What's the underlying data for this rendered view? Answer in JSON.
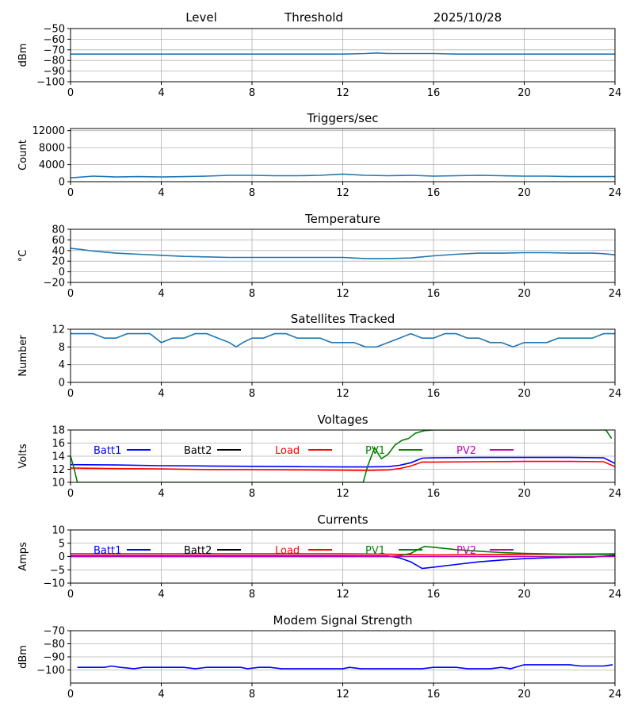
{
  "header": {
    "level": "Level",
    "threshold": "Threshold",
    "date": "2025/10/28"
  },
  "colors": {
    "series_default": "#1f77b4",
    "Batt1": "#0000ff",
    "Batt2": "#000000",
    "Load": "#ff0000",
    "PV1": "#008000",
    "PV2": "#bf00bf",
    "grid": "#b0b0b0"
  },
  "chart_data": [
    {
      "type": "line",
      "title": "",
      "ylabel": "dBm",
      "xlim": [
        0,
        24
      ],
      "ylim": [
        -100,
        -50
      ],
      "xticks": [
        0,
        4,
        8,
        12,
        16,
        20,
        24
      ],
      "yticks": [
        -100,
        -90,
        -80,
        -70,
        -60,
        -50
      ],
      "grid": true,
      "series": [
        {
          "color": "#1f77b4",
          "x": [
            0,
            1,
            2,
            3,
            4,
            5,
            6,
            7,
            8,
            9,
            10,
            11,
            12,
            13,
            13.5,
            14,
            15,
            16,
            17,
            18,
            19,
            20,
            21,
            22,
            23,
            24
          ],
          "y": [
            -74,
            -74,
            -74,
            -74,
            -74,
            -74,
            -74,
            -74,
            -74,
            -74,
            -74,
            -74,
            -74,
            -73.5,
            -73,
            -73.5,
            -73.5,
            -73.5,
            -74,
            -74,
            -74,
            -74,
            -74,
            -74,
            -74,
            -74
          ]
        }
      ]
    },
    {
      "type": "line",
      "title": "Triggers/sec",
      "ylabel": "Count",
      "xlim": [
        0,
        24
      ],
      "ylim": [
        0,
        12500
      ],
      "xticks": [
        0,
        4,
        8,
        12,
        16,
        20,
        24
      ],
      "yticks": [
        0,
        4000,
        8000,
        12000
      ],
      "grid": true,
      "series": [
        {
          "color": "#1f77b4",
          "x": [
            0,
            1,
            2,
            3,
            4,
            5,
            6,
            7,
            8,
            9,
            10,
            11,
            12,
            13,
            14,
            15,
            16,
            17,
            18,
            19,
            20,
            21,
            22,
            23,
            24
          ],
          "y": [
            900,
            1300,
            1100,
            1200,
            1100,
            1200,
            1300,
            1500,
            1500,
            1400,
            1400,
            1500,
            1800,
            1500,
            1400,
            1500,
            1300,
            1400,
            1500,
            1400,
            1300,
            1300,
            1200,
            1200,
            1200
          ]
        }
      ]
    },
    {
      "type": "line",
      "title": "Temperature",
      "ylabel": "°C",
      "xlim": [
        0,
        24
      ],
      "ylim": [
        -20,
        80
      ],
      "xticks": [
        0,
        4,
        8,
        12,
        16,
        20,
        24
      ],
      "yticks": [
        -20,
        0,
        20,
        40,
        60,
        80
      ],
      "grid": true,
      "series": [
        {
          "color": "#1f77b4",
          "x": [
            0,
            0.5,
            1,
            2,
            3,
            4,
            5,
            6,
            7,
            8,
            9,
            10,
            11,
            12,
            13,
            14,
            15,
            15.5,
            16,
            17,
            18,
            19,
            20,
            21,
            22,
            23,
            23.5,
            24
          ],
          "y": [
            44,
            42,
            39,
            35,
            33,
            31,
            29,
            28,
            27,
            27,
            27,
            27,
            27,
            27,
            25,
            25,
            26,
            28,
            30,
            33,
            35,
            35,
            36,
            36,
            35,
            35,
            34,
            32
          ]
        }
      ]
    },
    {
      "type": "line",
      "title": "Satellites Tracked",
      "ylabel": "Number",
      "xlim": [
        0,
        24
      ],
      "ylim": [
        0,
        12
      ],
      "xticks": [
        0,
        4,
        8,
        12,
        16,
        20,
        24
      ],
      "yticks": [
        0,
        4,
        8,
        12
      ],
      "grid": true,
      "series": [
        {
          "color": "#1f77b4",
          "x": [
            0,
            0.5,
            1,
            1.5,
            2,
            2.5,
            3,
            3.5,
            4,
            4.5,
            5,
            5.5,
            6,
            6.5,
            7,
            7.3,
            7.6,
            8,
            8.5,
            9,
            9.5,
            10,
            10.5,
            11,
            11.5,
            12,
            12.5,
            13,
            13.5,
            14,
            14.5,
            15,
            15.5,
            16,
            16.5,
            17,
            17.5,
            18,
            18.5,
            19,
            19.5,
            20,
            20.5,
            21,
            21.5,
            22,
            22.5,
            23,
            23.5,
            24
          ],
          "y": [
            11,
            11,
            11,
            10,
            10,
            11,
            11,
            11,
            9,
            10,
            10,
            11,
            11,
            10,
            9,
            8,
            9,
            10,
            10,
            11,
            11,
            10,
            10,
            10,
            9,
            9,
            9,
            8,
            8,
            9,
            10,
            11,
            10,
            10,
            11,
            11,
            10,
            10,
            9,
            9,
            8,
            9,
            9,
            9,
            10,
            10,
            10,
            10,
            11,
            11
          ]
        }
      ]
    },
    {
      "type": "line",
      "title": "Voltages",
      "ylabel": "Volts",
      "xlim": [
        0,
        24
      ],
      "ylim": [
        10,
        18
      ],
      "xticks": [
        0,
        4,
        8,
        12,
        16,
        20,
        24
      ],
      "yticks": [
        10,
        12,
        14,
        16,
        18
      ],
      "grid": true,
      "legend": "top",
      "series": [
        {
          "name": "Batt1",
          "color": "#0000ff",
          "x": [
            0,
            2,
            4,
            6,
            8,
            10,
            12,
            13,
            14,
            14.5,
            15,
            15.5,
            16,
            18,
            20,
            22,
            23.5,
            24
          ],
          "y": [
            12.7,
            12.65,
            12.55,
            12.5,
            12.45,
            12.4,
            12.35,
            12.35,
            12.4,
            12.6,
            13.0,
            13.7,
            13.75,
            13.8,
            13.8,
            13.8,
            13.75,
            12.9
          ]
        },
        {
          "name": "Batt2",
          "color": "#000000",
          "x": [],
          "y": []
        },
        {
          "name": "Load",
          "color": "#ff0000",
          "x": [
            0,
            2,
            4,
            6,
            8,
            10,
            12,
            13,
            14,
            14.5,
            15,
            15.5,
            16,
            18,
            20,
            22,
            23.5,
            24
          ],
          "y": [
            12.2,
            12.1,
            12.05,
            11.95,
            11.95,
            11.9,
            11.85,
            11.8,
            11.9,
            12.1,
            12.5,
            13.1,
            13.1,
            13.15,
            13.2,
            13.2,
            13.15,
            12.4
          ]
        },
        {
          "name": "PV1",
          "color": "#008000",
          "x": [
            0,
            0.15,
            0.3,
            12.9,
            13.1,
            13.4,
            13.7,
            14,
            14.3,
            14.6,
            14.9,
            15.2,
            15.6,
            16,
            23.6,
            23.85
          ],
          "y": [
            14,
            12.2,
            10,
            10,
            12.5,
            15.3,
            13.6,
            14.3,
            15.7,
            16.4,
            16.7,
            17.5,
            17.9,
            18,
            18,
            16.7
          ]
        },
        {
          "name": "PV2",
          "color": "#bf00bf",
          "x": [],
          "y": []
        }
      ]
    },
    {
      "type": "line",
      "title": "Currents",
      "ylabel": "Amps",
      "xlim": [
        0,
        24
      ],
      "ylim": [
        -10,
        10
      ],
      "xticks": [
        0,
        4,
        8,
        12,
        16,
        20,
        24
      ],
      "yticks": [
        -10,
        -5,
        0,
        5,
        10
      ],
      "grid": true,
      "legend": "top",
      "series": [
        {
          "name": "Batt1",
          "color": "#0000ff",
          "x": [
            0,
            4,
            8,
            12,
            14,
            14.5,
            15,
            15.5,
            16,
            17,
            18,
            19,
            20,
            21,
            22,
            23,
            24
          ],
          "y": [
            0.3,
            0.3,
            0.3,
            0.3,
            0.2,
            -0.5,
            -2,
            -4.5,
            -4,
            -3,
            -2,
            -1.3,
            -0.8,
            -0.5,
            -0.3,
            -0.2,
            0.4
          ]
        },
        {
          "name": "Batt2",
          "color": "#000000",
          "x": [],
          "y": []
        },
        {
          "name": "Load",
          "color": "#ff0000",
          "x": [
            0,
            4,
            8,
            12,
            14,
            15,
            16,
            20,
            24
          ],
          "y": [
            1.0,
            1.0,
            1.0,
            1.0,
            0.9,
            0.7,
            0.6,
            0.8,
            1.0
          ]
        },
        {
          "name": "PV1",
          "color": "#008000",
          "x": [
            0,
            14,
            14.5,
            15,
            15.3,
            15.6,
            16,
            17,
            18,
            19,
            20,
            21,
            22,
            23,
            24
          ],
          "y": [
            0,
            0,
            0.3,
            1.2,
            2.5,
            3.8,
            3.5,
            2.6,
            2.0,
            1.5,
            1.2,
            1.0,
            0.8,
            0.8,
            0.8
          ]
        },
        {
          "name": "PV2",
          "color": "#bf00bf",
          "x": [
            0,
            24
          ],
          "y": [
            0,
            0
          ]
        }
      ]
    },
    {
      "type": "line",
      "title": "Modem Signal Strength",
      "ylabel": "dBm",
      "xlim": [
        0,
        24
      ],
      "ylim": [
        -110,
        -70
      ],
      "xticks": [
        0,
        4,
        8,
        12,
        16,
        20,
        24
      ],
      "yticks": [
        -100,
        -90,
        -80,
        -70
      ],
      "grid": true,
      "series": [
        {
          "color": "#0000ff",
          "x": [
            0.3,
            1,
            1.5,
            1.8,
            2.2,
            2.8,
            3.2,
            3.8,
            4.5,
            5,
            5.5,
            6,
            6.5,
            7,
            7.5,
            7.8,
            8.3,
            8.8,
            9.3,
            10,
            10.5,
            11,
            11.5,
            12,
            12.3,
            12.8,
            13.3,
            14,
            15,
            15.5,
            16,
            16.5,
            17,
            17.5,
            18,
            18.5,
            19,
            19.4,
            19.8,
            20,
            20.5,
            21,
            21.5,
            22,
            22.5,
            23,
            23.5,
            23.9
          ],
          "y": [
            -98,
            -98,
            -98,
            -97,
            -98,
            -99,
            -98,
            -98,
            -98,
            -98,
            -99,
            -98,
            -98,
            -98,
            -98,
            -99,
            -98,
            -98,
            -99,
            -99,
            -99,
            -99,
            -99,
            -99,
            -98,
            -99,
            -99,
            -99,
            -99,
            -99,
            -98,
            -98,
            -98,
            -99,
            -99,
            -99,
            -98,
            -99,
            -97,
            -96,
            -96,
            -96,
            -96,
            -96,
            -97,
            -97,
            -97,
            -96
          ]
        }
      ]
    }
  ]
}
